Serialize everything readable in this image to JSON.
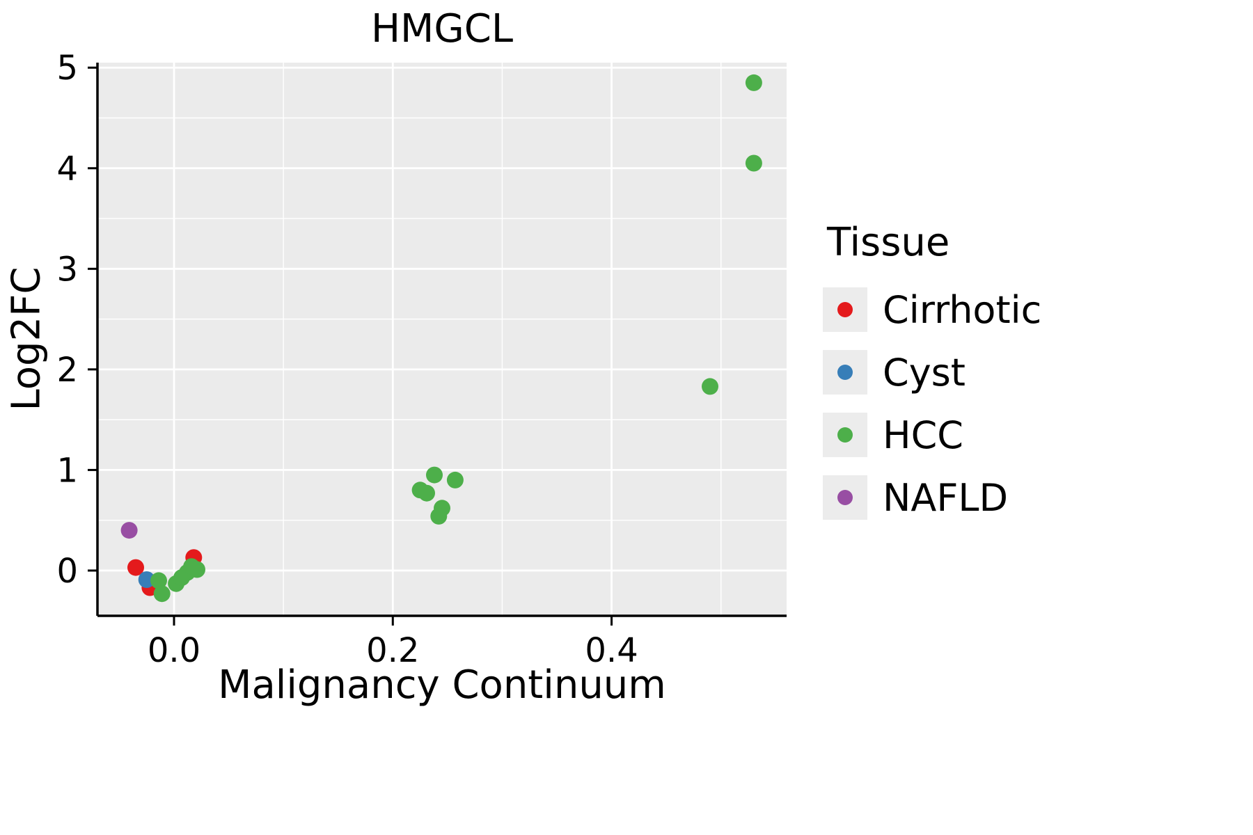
{
  "chart_data": {
    "type": "scatter",
    "title": "HMGCL",
    "xlabel": "Malignancy Continuum",
    "ylabel": "Log2FC",
    "xlim": [
      -0.07,
      0.56
    ],
    "ylim": [
      -0.45,
      5.05
    ],
    "x_ticks": [
      0.0,
      0.2,
      0.4
    ],
    "x_tick_labels": [
      "0.0",
      "0.2",
      "0.4"
    ],
    "y_ticks": [
      0,
      1,
      2,
      3,
      4,
      5
    ],
    "y_tick_labels": [
      "0",
      "1",
      "2",
      "3",
      "4",
      "5"
    ],
    "x_minor_ticks": [
      0.1,
      0.3,
      0.5
    ],
    "y_minor_ticks": [
      0.5,
      1.5,
      2.5,
      3.5,
      4.5
    ],
    "grid": true,
    "panel_bg": "#ebebeb",
    "grid_color": "#ffffff",
    "axis_color": "#000000",
    "legend_title": "Tissue",
    "legend_position": "right",
    "point_radius": 12,
    "series": [
      {
        "name": "Cirrhotic",
        "color": "#e41a1c",
        "points": [
          [
            -0.035,
            0.03
          ],
          [
            -0.022,
            -0.17
          ],
          [
            0.018,
            0.13
          ]
        ]
      },
      {
        "name": "Cyst",
        "color": "#377eb8",
        "points": [
          [
            -0.025,
            -0.09
          ]
        ]
      },
      {
        "name": "HCC",
        "color": "#4daf4a",
        "points": [
          [
            -0.014,
            -0.1
          ],
          [
            -0.011,
            -0.23
          ],
          [
            0.002,
            -0.13
          ],
          [
            0.007,
            -0.07
          ],
          [
            0.012,
            -0.02
          ],
          [
            0.016,
            0.04
          ],
          [
            0.021,
            0.01
          ],
          [
            0.225,
            0.8
          ],
          [
            0.231,
            0.77
          ],
          [
            0.238,
            0.95
          ],
          [
            0.257,
            0.9
          ],
          [
            0.245,
            0.62
          ],
          [
            0.242,
            0.54
          ],
          [
            0.49,
            1.83
          ],
          [
            0.53,
            4.85
          ],
          [
            0.53,
            4.05
          ]
        ]
      },
      {
        "name": "NAFLD",
        "color": "#984ea3",
        "points": [
          [
            -0.041,
            0.4
          ]
        ]
      }
    ]
  }
}
